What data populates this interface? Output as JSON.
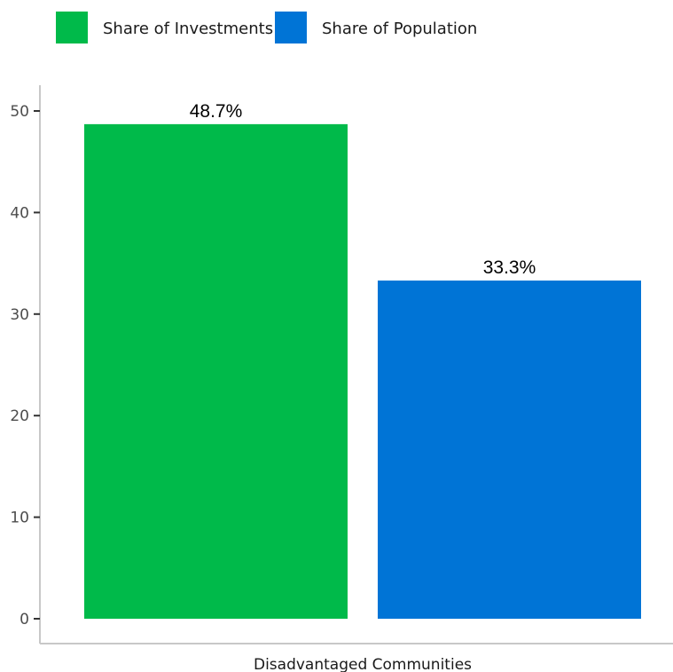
{
  "chart_data": {
    "type": "bar",
    "categories": [
      "Disadvantaged Communities"
    ],
    "series": [
      {
        "name": "Share of Investments",
        "values": [
          48.7
        ],
        "data_label": "48.7%",
        "color": "#00BA4A"
      },
      {
        "name": "Share of Population",
        "values": [
          33.3
        ],
        "data_label": "33.3%",
        "color": "#0074D6"
      }
    ],
    "yticks": [
      "0",
      "10",
      "20",
      "30",
      "40",
      "50"
    ],
    "ylim": [
      0,
      50
    ],
    "xlabel": "",
    "ylabel": "",
    "title": "",
    "grid": false,
    "legend_position": "top-left"
  }
}
